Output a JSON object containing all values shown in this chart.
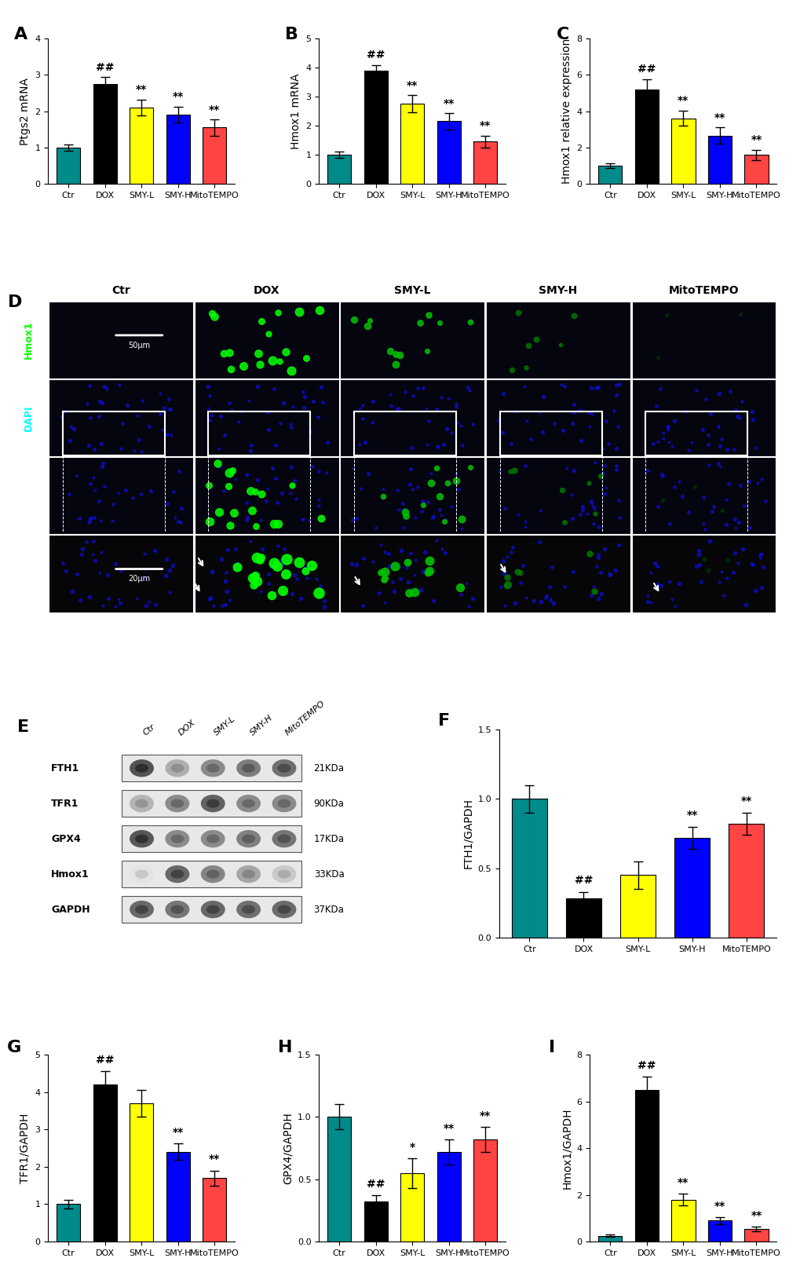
{
  "categories": [
    "Ctr",
    "DOX",
    "SMY-L",
    "SMY-H",
    "MitoTEMPO"
  ],
  "bar_colors": [
    "#008B8B",
    "#000000",
    "#FFFF00",
    "#0000FF",
    "#FF4444"
  ],
  "panel_A": {
    "title": "A",
    "ylabel": "Ptgs2 mRNA",
    "values": [
      1.0,
      2.75,
      2.1,
      1.9,
      1.55
    ],
    "errors": [
      0.08,
      0.18,
      0.22,
      0.22,
      0.22
    ],
    "ylim": [
      0,
      4
    ],
    "yticks": [
      0,
      1,
      2,
      3,
      4
    ],
    "annotations": [
      "",
      "##",
      "**",
      "**",
      "**"
    ]
  },
  "panel_B": {
    "title": "B",
    "ylabel": "Hmox1 mRNA",
    "values": [
      1.0,
      3.9,
      2.75,
      2.15,
      1.45
    ],
    "errors": [
      0.1,
      0.18,
      0.3,
      0.28,
      0.2
    ],
    "ylim": [
      0,
      5
    ],
    "yticks": [
      0,
      1,
      2,
      3,
      4,
      5
    ],
    "annotations": [
      "",
      "##",
      "**",
      "**",
      "**"
    ]
  },
  "panel_C": {
    "title": "C",
    "ylabel": "Hmox1 relative expression",
    "values": [
      1.0,
      5.2,
      3.6,
      2.65,
      1.6
    ],
    "errors": [
      0.12,
      0.55,
      0.42,
      0.45,
      0.28
    ],
    "ylim": [
      0,
      8
    ],
    "yticks": [
      0,
      2,
      4,
      6,
      8
    ],
    "annotations": [
      "",
      "##",
      "**",
      "**",
      "**"
    ]
  },
  "panel_F": {
    "title": "F",
    "ylabel": "FTH1/GAPDH",
    "values": [
      1.0,
      0.28,
      0.45,
      0.72,
      0.82
    ],
    "errors": [
      0.1,
      0.05,
      0.1,
      0.08,
      0.08
    ],
    "ylim": [
      0,
      1.5
    ],
    "yticks": [
      0.0,
      0.5,
      1.0,
      1.5
    ],
    "annotations": [
      "",
      "##",
      "",
      "**",
      "**"
    ]
  },
  "panel_G": {
    "title": "G",
    "ylabel": "TFR1/GAPDH",
    "values": [
      1.0,
      4.2,
      3.7,
      2.4,
      1.7
    ],
    "errors": [
      0.12,
      0.35,
      0.35,
      0.22,
      0.2
    ],
    "ylim": [
      0,
      5
    ],
    "yticks": [
      0,
      1,
      2,
      3,
      4,
      5
    ],
    "annotations": [
      "",
      "##",
      "",
      "**",
      "**"
    ]
  },
  "panel_H": {
    "title": "H",
    "ylabel": "GPX4/GAPDH",
    "values": [
      1.0,
      0.32,
      0.55,
      0.72,
      0.82
    ],
    "errors": [
      0.1,
      0.05,
      0.12,
      0.1,
      0.1
    ],
    "ylim": [
      0,
      1.5
    ],
    "yticks": [
      0.0,
      0.5,
      1.0,
      1.5
    ],
    "annotations": [
      "",
      "##",
      "*",
      "**",
      "**"
    ]
  },
  "panel_I": {
    "title": "I",
    "ylabel": "Hmox1/GAPDH",
    "values": [
      0.25,
      6.5,
      1.8,
      0.9,
      0.55
    ],
    "errors": [
      0.05,
      0.55,
      0.25,
      0.15,
      0.1
    ],
    "ylim": [
      0,
      8
    ],
    "yticks": [
      0,
      2,
      4,
      6,
      8
    ],
    "annotations": [
      "",
      "##",
      "**",
      "**",
      "**"
    ]
  },
  "western_blot": {
    "title": "E",
    "bands": [
      "FTH1",
      "TFR1",
      "GPX4",
      "Hmox1",
      "GAPDH"
    ],
    "kda": [
      "21KDa",
      "90KDa",
      "17KDa",
      "33KDa",
      "37KDa"
    ],
    "sample_labels": [
      "Ctr",
      "DOX",
      "SMY-L",
      "SMY-H",
      "MitoTEMPO"
    ],
    "band_intensities": {
      "FTH1": [
        0.82,
        0.38,
        0.55,
        0.62,
        0.68
      ],
      "TFR1": [
        0.35,
        0.55,
        0.75,
        0.55,
        0.55
      ],
      "GPX4": [
        0.8,
        0.55,
        0.55,
        0.6,
        0.65
      ],
      "Hmox1": [
        0.12,
        0.72,
        0.58,
        0.42,
        0.25
      ],
      "GAPDH": [
        0.72,
        0.65,
        0.72,
        0.68,
        0.7
      ]
    }
  },
  "bg_color": "#FFFFFF",
  "label_fontsize": 10,
  "title_fontsize": 16,
  "tick_fontsize": 8,
  "annotation_fontsize": 10,
  "bar_width": 0.65
}
